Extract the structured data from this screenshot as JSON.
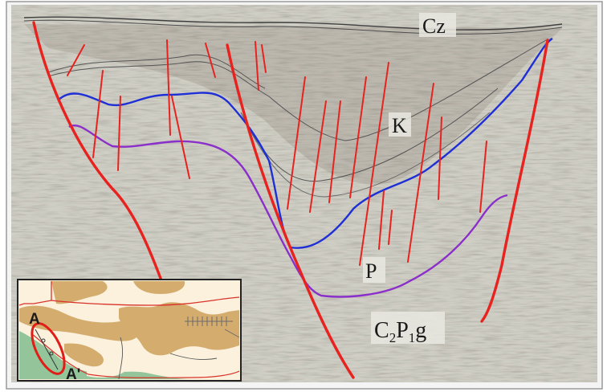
{
  "section": {
    "labels": {
      "cz": "Cz",
      "k": "K",
      "p": "P",
      "formation_base": "C",
      "formation_sub1": "2",
      "formation_mid": "P",
      "formation_sub2": "1",
      "formation_end": "g"
    },
    "colors": {
      "fault": "#e8231f",
      "horizon_blue": "#1f2fd6",
      "horizon_purple": "#8a2fc9",
      "horizon_top": "#4a4a4a",
      "background": "#c9c7bd"
    }
  },
  "inset_map": {
    "point_a": "A",
    "point_a_prime": "A'",
    "colors": {
      "tan": "#d4ac6e",
      "cream": "#fbf1dc",
      "green": "#93c49a",
      "boundary": "#d9322a",
      "ellipse": "#e01d17"
    }
  }
}
